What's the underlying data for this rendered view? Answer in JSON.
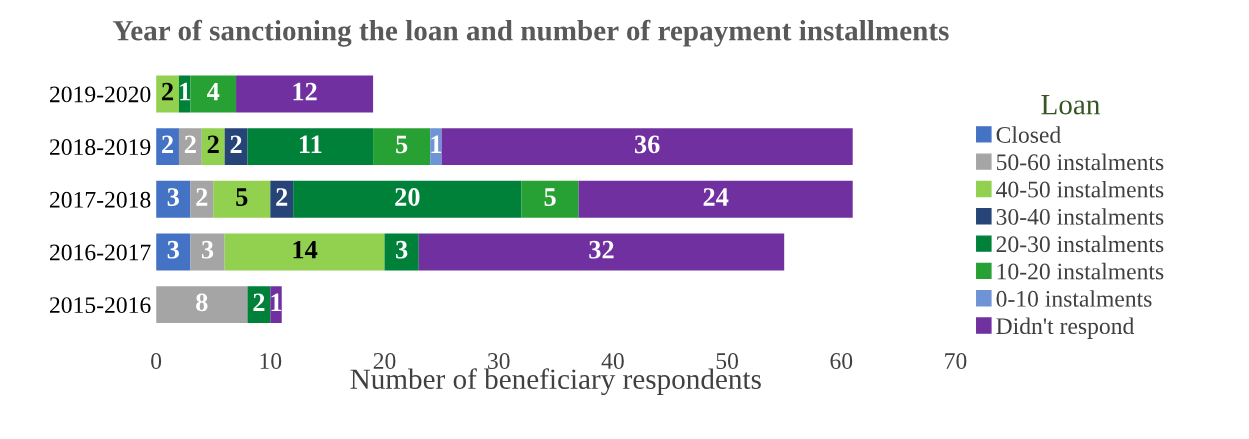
{
  "chart_data": {
    "type": "bar",
    "orientation": "horizontal",
    "stacked": true,
    "data_labels": true,
    "title": "Year of sanctioning the loan and number of repayment installments",
    "xlabel": "Number of beneficiary respondents",
    "legend_title": "Loan",
    "legend": "right",
    "grid": false,
    "categories": [
      "2019-2020",
      "2018-2019",
      "2017-2018",
      "2016-2017",
      "2015-2016"
    ],
    "xlim": [
      0,
      70
    ],
    "xticks": [
      0,
      10,
      20,
      30,
      40,
      50,
      60,
      70
    ],
    "series": [
      {
        "name": "Closed",
        "color": "#4472c4",
        "values": [
          null,
          2,
          3,
          3,
          null
        ]
      },
      {
        "name": "50-60 instalments",
        "color": "#a5a5a5",
        "values": [
          null,
          2,
          2,
          3,
          8
        ]
      },
      {
        "name": "40-50 instalments",
        "color": "#92d050",
        "values": [
          2,
          2,
          5,
          14,
          null
        ]
      },
      {
        "name": "30-40 instalments",
        "color": "#264478",
        "values": [
          null,
          2,
          2,
          null,
          null
        ]
      },
      {
        "name": "20-30 instalments",
        "color": "#00813a",
        "values": [
          1,
          11,
          20,
          3,
          2
        ]
      },
      {
        "name": "10-20 instalments",
        "color": "#27a034",
        "values": [
          4,
          5,
          5,
          null,
          null
        ]
      },
      {
        "name": "0-10 instalments",
        "color": "#6f94d6",
        "values": [
          null,
          1,
          null,
          null,
          null
        ]
      },
      {
        "name": "Didn't respond",
        "color": "#7030a0",
        "values": [
          12,
          36,
          24,
          32,
          1
        ]
      }
    ]
  }
}
